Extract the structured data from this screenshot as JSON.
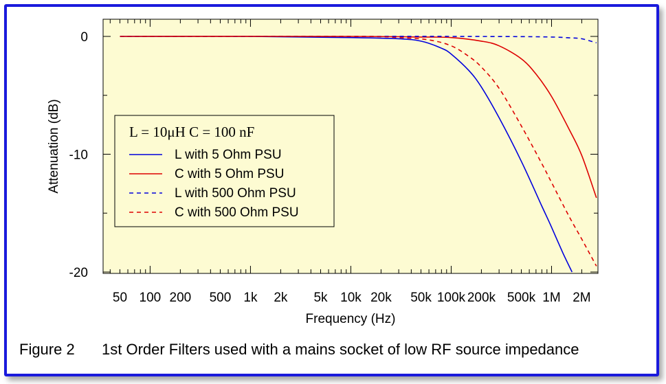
{
  "chart_data": {
    "type": "line",
    "title": "",
    "xlabel": "Frequency (Hz)",
    "ylabel": "Attenuation (dB)",
    "xscale": "log",
    "xlim": [
      34,
      2900000
    ],
    "ylim": [
      -20,
      1.5
    ],
    "grid": false,
    "legend_placement": "middle-left",
    "legend_title": "L = 10μH   C = 100 nF",
    "x_ticks": [
      {
        "value": 50,
        "label": "50"
      },
      {
        "value": 100,
        "label": "100"
      },
      {
        "value": 200,
        "label": "200"
      },
      {
        "value": 500,
        "label": "500"
      },
      {
        "value": 1000,
        "label": "1k"
      },
      {
        "value": 2000,
        "label": "2k"
      },
      {
        "value": 5000,
        "label": "5k"
      },
      {
        "value": 10000,
        "label": "10k"
      },
      {
        "value": 20000,
        "label": "20k"
      },
      {
        "value": 50000,
        "label": "50k"
      },
      {
        "value": 100000,
        "label": "100k"
      },
      {
        "value": 200000,
        "label": "200k"
      },
      {
        "value": 500000,
        "label": "500k"
      },
      {
        "value": 1000000,
        "label": "1M"
      },
      {
        "value": 2000000,
        "label": "2M"
      }
    ],
    "y_ticks": [
      {
        "value": 0,
        "label": "0"
      },
      {
        "value": -10,
        "label": "-10"
      },
      {
        "value": -20,
        "label": "-20"
      }
    ],
    "series": [
      {
        "name": "L with 5 Ohm PSU",
        "color": "#0000dd",
        "dash": "solid",
        "x": [
          50,
          1000,
          10000,
          30000,
          50000,
          80000,
          100000,
          150000,
          200000,
          300000,
          500000,
          800000,
          1000000,
          1300000,
          1600000
        ],
        "y": [
          0,
          0,
          -0.1,
          -0.2,
          -0.4,
          -1.0,
          -1.5,
          -2.9,
          -4.3,
          -6.9,
          -10.6,
          -14.4,
          -16.2,
          -18.4,
          -20.0
        ]
      },
      {
        "name": "C with 5 Ohm PSU",
        "color": "#dd0000",
        "dash": "solid",
        "x": [
          50,
          10000,
          50000,
          100000,
          200000,
          300000,
          500000,
          700000,
          1000000,
          1500000,
          2000000,
          2800000
        ],
        "y": [
          0,
          0,
          -0.05,
          -0.1,
          -0.4,
          -0.8,
          -1.9,
          -3.2,
          -5.1,
          -7.9,
          -10.1,
          -13.7
        ]
      },
      {
        "name": "L with 500 Ohm PSU",
        "color": "#0000dd",
        "dash": "dashed",
        "x": [
          50,
          10000,
          100000,
          500000,
          1000000,
          1500000,
          2000000,
          2800000
        ],
        "y": [
          0,
          0,
          0,
          -0.02,
          -0.05,
          -0.12,
          -0.2,
          -0.55
        ]
      },
      {
        "name": "C with 500 Ohm PSU",
        "color": "#dd0000",
        "dash": "dashed",
        "x": [
          50,
          10000,
          30000,
          60000,
          100000,
          150000,
          200000,
          300000,
          500000,
          800000,
          1000000,
          1500000,
          2000000,
          2800000
        ],
        "y": [
          0,
          0,
          -0.1,
          -0.3,
          -0.8,
          -1.7,
          -2.6,
          -4.4,
          -7.6,
          -10.8,
          -12.4,
          -15.3,
          -17.2,
          -19.5
        ]
      }
    ]
  },
  "caption": {
    "label": "Figure 2",
    "text": "1st Order Filters used with a mains socket of low RF source impedance"
  }
}
